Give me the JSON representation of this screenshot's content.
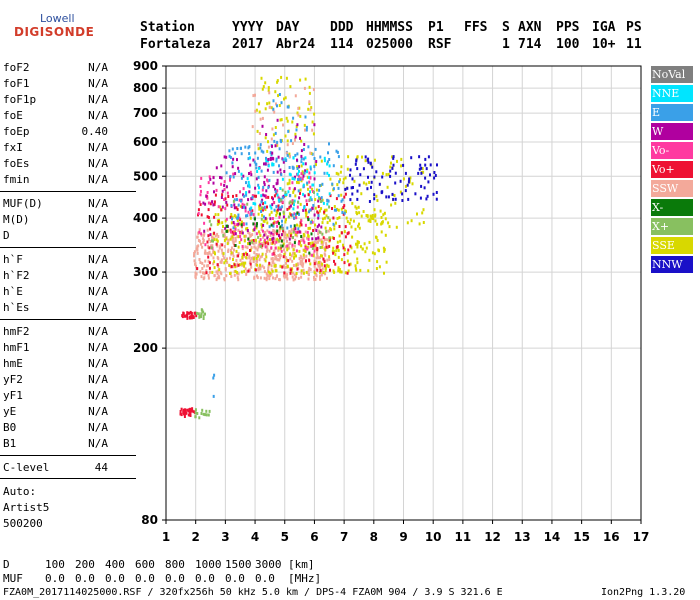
{
  "logo": {
    "top": "Lowell",
    "bottom": "DIGISONDE"
  },
  "header": {
    "labels": [
      "Station",
      "YYYY",
      "DAY",
      "DDD",
      "HHMMSS",
      "P1",
      "FFS",
      "S",
      "AXN",
      "PPS",
      "IGA",
      "PS"
    ],
    "values": [
      "Fortaleza",
      "2017",
      "Abr24",
      "114",
      "025000",
      "RSF",
      "",
      "1",
      "714",
      "100",
      "10+",
      "11"
    ]
  },
  "params": [
    {
      "name": "foF2",
      "value": "N/A"
    },
    {
      "name": "foF1",
      "value": "N/A"
    },
    {
      "name": "foF1p",
      "value": "N/A"
    },
    {
      "name": "foE",
      "value": "N/A"
    },
    {
      "name": "foEp",
      "value": "0.40"
    },
    {
      "name": "fxI",
      "value": "N/A"
    },
    {
      "name": "foEs",
      "value": "N/A"
    },
    {
      "name": "fmin",
      "value": "N/A"
    },
    {
      "name": "MUF(D)",
      "value": "N/A"
    },
    {
      "name": "M(D)",
      "value": "N/A"
    },
    {
      "name": "D",
      "value": "N/A"
    },
    {
      "name": "h`F",
      "value": "N/A"
    },
    {
      "name": "h`F2",
      "value": "N/A"
    },
    {
      "name": "h`E",
      "value": "N/A"
    },
    {
      "name": "h`Es",
      "value": "N/A"
    },
    {
      "name": "hmF2",
      "value": "N/A"
    },
    {
      "name": "hmF1",
      "value": "N/A"
    },
    {
      "name": "hmE",
      "value": "N/A"
    },
    {
      "name": "yF2",
      "value": "N/A"
    },
    {
      "name": "yF1",
      "value": "N/A"
    },
    {
      "name": "yE",
      "value": "N/A"
    },
    {
      "name": "B0",
      "value": "N/A"
    },
    {
      "name": "B1",
      "value": "N/A"
    },
    {
      "name": "C-level",
      "value": "44"
    }
  ],
  "auto": {
    "line1": "Auto:",
    "line2": "Artist5",
    "line3": "500200"
  },
  "legend": [
    {
      "label": "NoVal",
      "color": "#7f7f7f"
    },
    {
      "label": "NNE",
      "color": "#00e5ff"
    },
    {
      "label": "E",
      "color": "#3aa0e8"
    },
    {
      "label": "W",
      "color": "#b0009f"
    },
    {
      "label": "Vo-",
      "color": "#ff3aa0"
    },
    {
      "label": "Vo+",
      "color": "#ee1133"
    },
    {
      "label": "SSW",
      "color": "#f3a99a"
    },
    {
      "label": "X-",
      "color": "#0a7a0a"
    },
    {
      "label": "X+",
      "color": "#88c060"
    },
    {
      "label": "SSE",
      "color": "#d8d800"
    },
    {
      "label": "NNW",
      "color": "#1a10c8"
    }
  ],
  "footer": {
    "d_label": "D",
    "d_values": [
      "100",
      "200",
      "400",
      "600",
      "800",
      "1000",
      "1500",
      "3000"
    ],
    "d_unit": "[km]",
    "muf_label": "MUF",
    "muf_values": [
      "0.0",
      "0.0",
      "0.0",
      "0.0",
      "0.0",
      "0.0",
      "0.0",
      "0.0"
    ],
    "muf_unit": "[MHz]",
    "info": "FZA0M_2017114025000.RSF / 320fx256h 50 kHz 5.0 km / DPS-4 FZA0M 904 / 3.9 S 321.6 E",
    "version": "Ion2Png 1.3.20"
  },
  "chart_data": {
    "type": "scatter",
    "xlim": [
      1,
      17
    ],
    "ylim": [
      80,
      900
    ],
    "y_scale": "log",
    "x_ticks": [
      1,
      2,
      3,
      4,
      5,
      6,
      7,
      8,
      9,
      10,
      11,
      12,
      13,
      14,
      15,
      16,
      17
    ],
    "y_ticks": [
      80,
      200,
      300,
      400,
      500,
      600,
      700,
      800,
      900
    ],
    "grid": true,
    "legend_position": "right",
    "clusters": [
      {
        "color_index": 5,
        "x": [
          1.45,
          2.0
        ],
        "y": [
          236,
          244
        ],
        "count": 30
      },
      {
        "color_index": 8,
        "x": [
          2.0,
          2.35
        ],
        "y": [
          236,
          248
        ],
        "count": 12
      },
      {
        "color_index": 5,
        "x": [
          1.45,
          1.95
        ],
        "y": [
          140,
          146
        ],
        "count": 30
      },
      {
        "color_index": 8,
        "x": [
          1.9,
          2.45
        ],
        "y": [
          139,
          146
        ],
        "count": 14
      },
      {
        "color_index": 2,
        "x": [
          2.55,
          2.65
        ],
        "y": [
          150,
          175
        ],
        "count": 3
      },
      {
        "color_index": 6,
        "x": [
          1.9,
          6.5
        ],
        "y": [
          290,
          380
        ],
        "count": 520
      },
      {
        "color_index": 9,
        "x": [
          2.5,
          8.4
        ],
        "y": [
          300,
          430
        ],
        "count": 340
      },
      {
        "color_index": 9,
        "x": [
          5.0,
          9.7
        ],
        "y": [
          380,
          560
        ],
        "count": 120
      },
      {
        "color_index": 5,
        "x": [
          2.0,
          7.2
        ],
        "y": [
          300,
          460
        ],
        "count": 160
      },
      {
        "color_index": 4,
        "x": [
          2.0,
          6.0
        ],
        "y": [
          330,
          520
        ],
        "count": 130
      },
      {
        "color_index": 3,
        "x": [
          2.2,
          6.2
        ],
        "y": [
          360,
          560
        ],
        "count": 130
      },
      {
        "color_index": 2,
        "x": [
          3.0,
          7.0
        ],
        "y": [
          380,
          600
        ],
        "count": 150
      },
      {
        "color_index": 1,
        "x": [
          3.5,
          6.6
        ],
        "y": [
          420,
          560
        ],
        "count": 70
      },
      {
        "color_index": 10,
        "x": [
          7.0,
          10.1
        ],
        "y": [
          440,
          560
        ],
        "count": 90
      },
      {
        "color_index": 9,
        "x": [
          4.0,
          6.0
        ],
        "y": [
          560,
          860
        ],
        "count": 60
      },
      {
        "color_index": 6,
        "x": [
          3.8,
          6.0
        ],
        "y": [
          560,
          820
        ],
        "count": 35
      },
      {
        "color_index": 2,
        "x": [
          4.5,
          6.0
        ],
        "y": [
          500,
          800
        ],
        "count": 30
      },
      {
        "color_index": 3,
        "x": [
          4.2,
          6.2
        ],
        "y": [
          520,
          680
        ],
        "count": 20
      },
      {
        "color_index": 8,
        "x": [
          2.4,
          6.5
        ],
        "y": [
          340,
          470
        ],
        "count": 40
      },
      {
        "color_index": 7,
        "x": [
          3.0,
          6.0
        ],
        "y": [
          330,
          420
        ],
        "count": 25
      }
    ]
  }
}
